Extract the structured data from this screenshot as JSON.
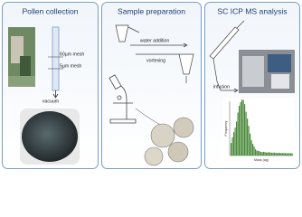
{
  "panels": [
    {
      "title": "Pollen collection",
      "labels": [
        "60µm mesh",
        "5µm mesh",
        "vacuum"
      ]
    },
    {
      "title": "Sample preparation",
      "labels": [
        "water addition",
        "vortexing"
      ]
    },
    {
      "title": "SC ICP MS analysis",
      "labels": [
        "infusion"
      ],
      "histogram": {
        "y_label": "Frequency",
        "x_label": "Mass (ag)"
      }
    }
  ]
}
